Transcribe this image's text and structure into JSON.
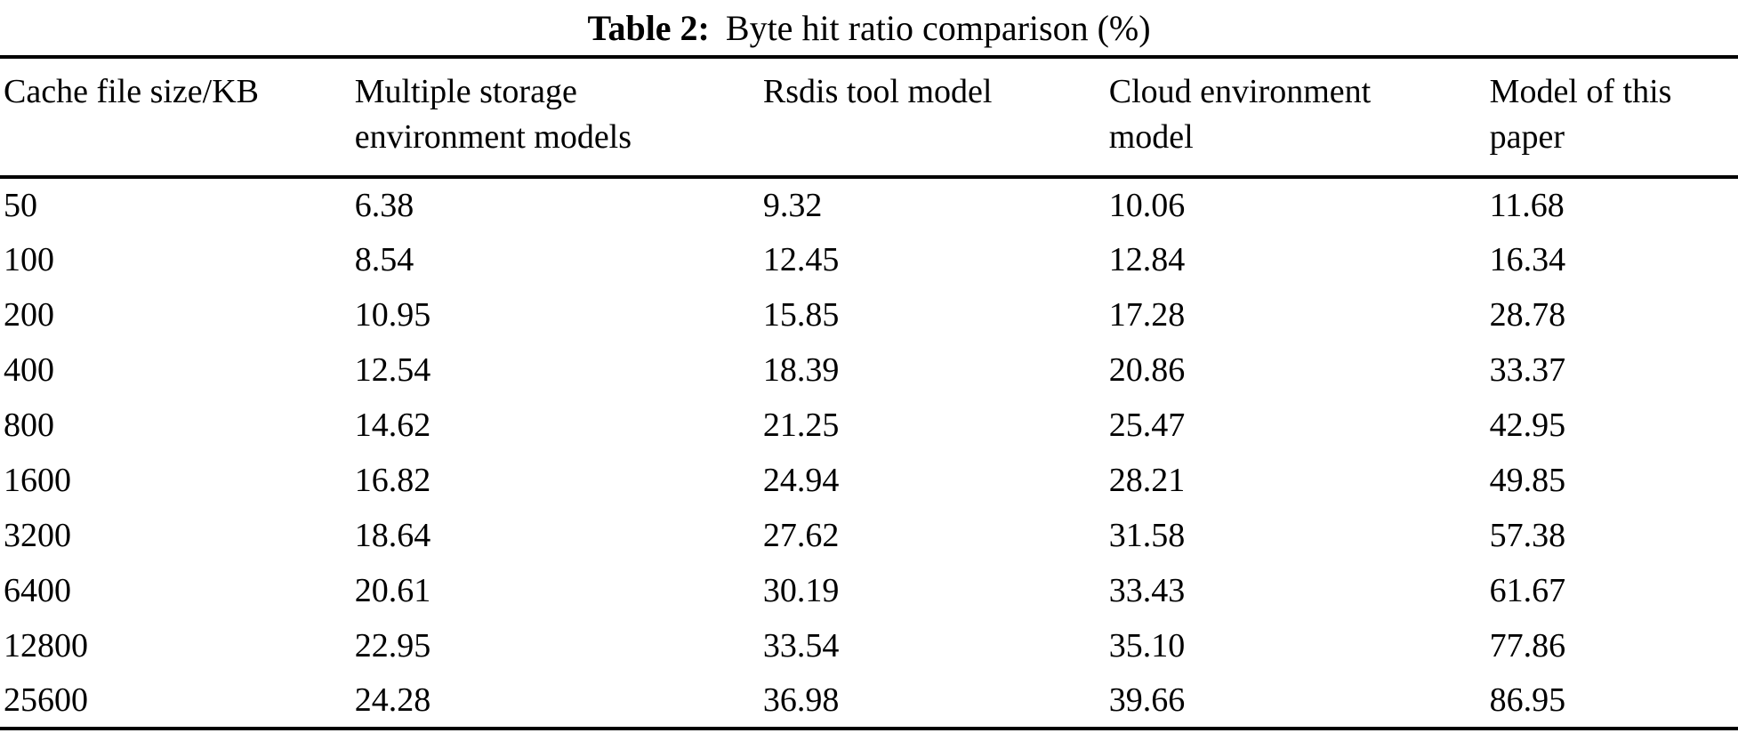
{
  "colors": {
    "text": "#000000",
    "background": "#ffffff",
    "rule": "#000000"
  },
  "table": {
    "caption_label": "Table 2:",
    "caption_text": "Byte hit ratio comparison (%)",
    "columns": [
      "Cache file size/KB",
      "Multiple storage environment models",
      "Rsdis tool model",
      "Cloud environment model",
      "Model of this paper"
    ],
    "rows": [
      [
        "50",
        "6.38",
        "9.32",
        "10.06",
        "11.68"
      ],
      [
        "100",
        "8.54",
        "12.45",
        "12.84",
        "16.34"
      ],
      [
        "200",
        "10.95",
        "15.85",
        "17.28",
        "28.78"
      ],
      [
        "400",
        "12.54",
        "18.39",
        "20.86",
        "33.37"
      ],
      [
        "800",
        "14.62",
        "21.25",
        "25.47",
        "42.95"
      ],
      [
        "1600",
        "16.82",
        "24.94",
        "28.21",
        "49.85"
      ],
      [
        "3200",
        "18.64",
        "27.62",
        "31.58",
        "57.38"
      ],
      [
        "6400",
        "20.61",
        "30.19",
        "33.43",
        "61.67"
      ],
      [
        "12800",
        "22.95",
        "33.54",
        "35.10",
        "77.86"
      ],
      [
        "25600",
        "24.28",
        "36.98",
        "39.66",
        "86.95"
      ]
    ]
  }
}
